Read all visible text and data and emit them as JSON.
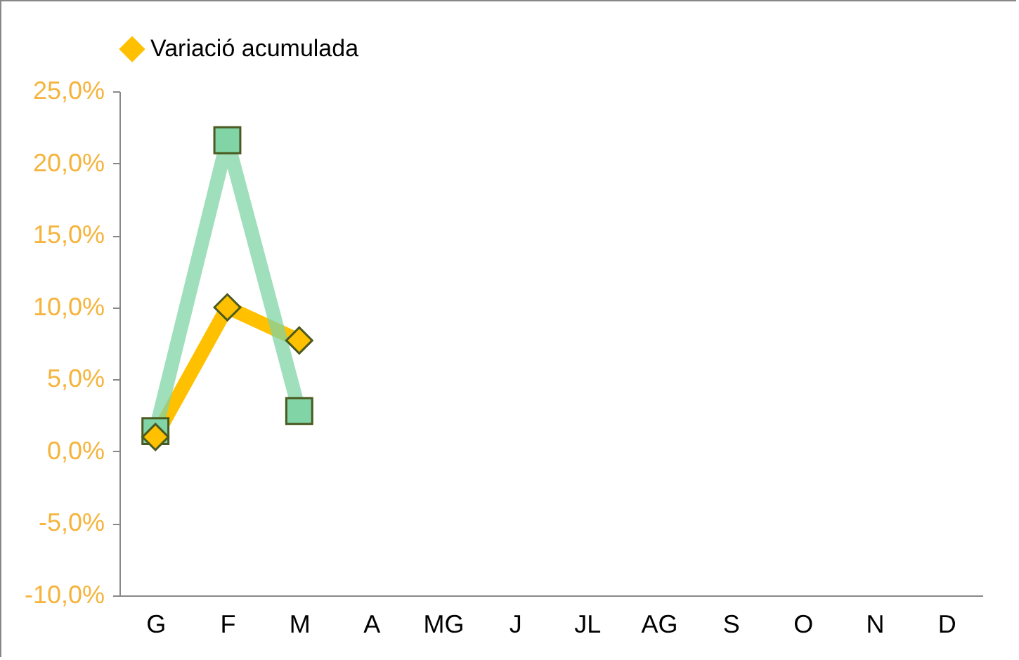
{
  "chart_data": {
    "type": "line",
    "categories": [
      "G",
      "F",
      "M",
      "A",
      "MG",
      "J",
      "JL",
      "AG",
      "S",
      "O",
      "N",
      "D"
    ],
    "series": [
      {
        "name": "Variació acumulada",
        "color": "#ffc000",
        "marker": "diamond",
        "values": [
          1.0,
          10.0,
          7.7,
          null,
          null,
          null,
          null,
          null,
          null,
          null,
          null,
          null
        ]
      },
      {
        "color": "#80d4a6",
        "marker": "square",
        "values": [
          1.4,
          21.6,
          2.8,
          null,
          null,
          null,
          null,
          null,
          null,
          null,
          null,
          null
        ]
      }
    ],
    "ylim": [
      -10,
      25
    ],
    "yticks": [
      {
        "value": -10,
        "label": "-10,0%"
      },
      {
        "value": -5,
        "label": "-5,0%"
      },
      {
        "value": 0,
        "label": "0,0%"
      },
      {
        "value": 5,
        "label": "5,0%"
      },
      {
        "value": 10,
        "label": "10,0%"
      },
      {
        "value": 15,
        "label": "15,0%"
      },
      {
        "value": 20,
        "label": "20,0%"
      },
      {
        "value": 25,
        "label": "25,0%"
      }
    ],
    "grid": false,
    "legend": "top"
  }
}
